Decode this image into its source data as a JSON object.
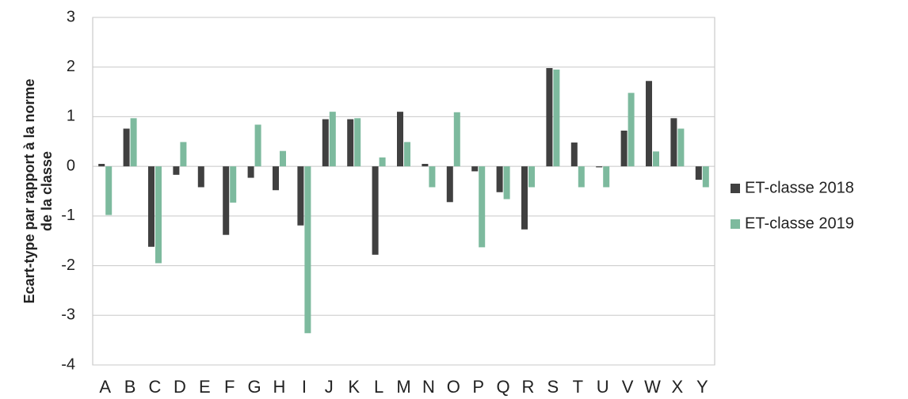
{
  "chart_data": {
    "type": "bar",
    "ylabel": [
      "Ecart-type par rapport à la norme",
      "de la classe"
    ],
    "categories": [
      "A",
      "B",
      "C",
      "D",
      "E",
      "F",
      "G",
      "H",
      "I",
      "J",
      "K",
      "L",
      "M",
      "N",
      "O",
      "P",
      "Q",
      "R",
      "S",
      "T",
      "U",
      "V",
      "W",
      "X",
      "Y"
    ],
    "series": [
      {
        "name": "ET-classe 2018",
        "color": "#404040",
        "values": [
          0.05,
          0.76,
          -1.62,
          -0.17,
          -0.42,
          -1.38,
          -0.23,
          -0.48,
          -1.19,
          0.95,
          0.95,
          -1.78,
          1.1,
          0.05,
          -0.72,
          -0.1,
          -0.52,
          -1.27,
          1.98,
          0.48,
          -0.02,
          0.72,
          1.72,
          0.97,
          -0.27
        ]
      },
      {
        "name": "ET-classe 2019",
        "color": "#7dba9e",
        "values": [
          -0.98,
          0.97,
          -1.95,
          0.49,
          0,
          -0.73,
          0.84,
          0.31,
          -3.36,
          1.1,
          0.97,
          0.18,
          0.49,
          -0.42,
          1.09,
          -1.63,
          -0.66,
          -0.42,
          1.95,
          -0.42,
          -0.42,
          1.48,
          0.3,
          0.76,
          -0.42
        ]
      }
    ],
    "ylim": [
      -4,
      3
    ],
    "yticks": [
      -4,
      -3,
      -2,
      -1,
      0,
      1,
      2,
      3
    ],
    "grid": true,
    "legend": "right"
  }
}
